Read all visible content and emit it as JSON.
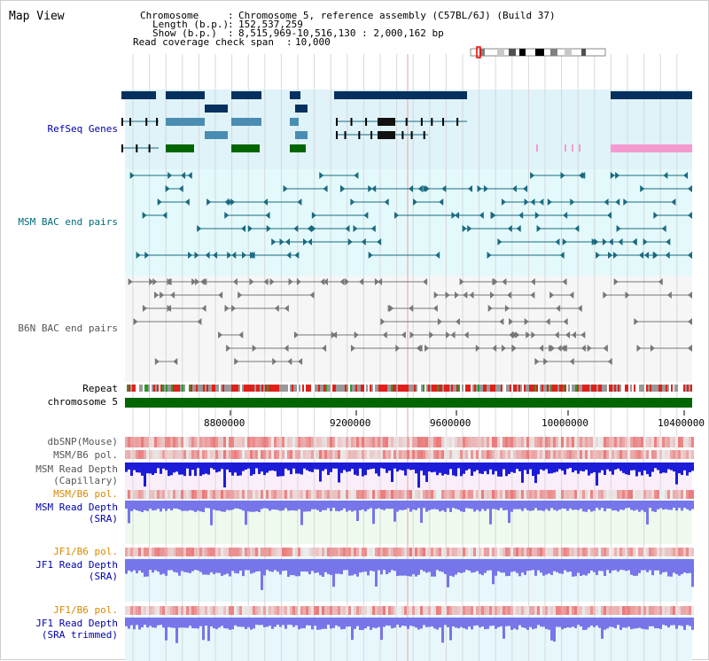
{
  "page": {
    "title": "Map View"
  },
  "header": {
    "rows": [
      {
        "label": "Chromosome",
        "sep": ":",
        "value": "Chromosome 5, reference assembly (C57BL/6J) (Build 37)"
      },
      {
        "label": "Length (b.p.)",
        "sep": ":",
        "value": "152,537,259"
      },
      {
        "label": "Show (b.p.)",
        "sep": ":",
        "value": "8,515,969-10,516,130 : 2,000,162 bp"
      },
      {
        "label": "Read coverage check span",
        "sep": ":",
        "value": "10,000"
      }
    ]
  },
  "tracks": {
    "refseq": "RefSeq Genes",
    "msm_bac": "MSM BAC end pairs",
    "b6n_bac": "B6N BAC end pairs",
    "repeat": "Repeat",
    "chromosome": "chromosome 5",
    "dbsnp": "dbSNP(Mouse)",
    "msm_b6_pol_1": "MSM/B6 pol.",
    "msm_depth_cap_1": "MSM Read Depth",
    "msm_depth_cap_2": "(Capillary)",
    "msm_b6_pol_2": "MSM/B6 pol.",
    "msm_depth_sra_1": "MSM Read Depth",
    "msm_depth_sra_2": "(SRA)",
    "jf1_b6_pol_1": "JF1/B6 pol.",
    "jf1_depth_sra_1": "JF1 Read Depth",
    "jf1_depth_sra_2": "(SRA)",
    "jf1_b6_pol_2": "JF1/B6 pol.",
    "jf1_depth_trim_1": "JF1 Read Depth",
    "jf1_depth_trim_2": "(SRA trimmed)"
  },
  "axis": {
    "ticks": [
      "8800000",
      "9200000",
      "9600000",
      "10000000",
      "10400000"
    ]
  },
  "colors": {
    "refseq_bg": "#dff3f9",
    "msm_bg": "#e3f9fb",
    "b6n_bg": "#f6f6f6",
    "depth_cap_bg": "#fbeefb",
    "depth_sra_bg": "#eefaee",
    "depth_jf1_bg": "#e7f7fb",
    "gene_navy": "#06305e",
    "gene_steel": "#4a8db3",
    "gene_green": "#006600",
    "msm_teal": "#1a6a80",
    "b6n_gray": "#5a5a5a",
    "chrom_green": "#006600",
    "repeat_red": "#e0201a",
    "depth_blue": "#1c1cd8",
    "depth_blue_light": "#7676ea",
    "label_blue": "#0000aa",
    "label_teal": "#006b7b",
    "label_orange": "#d88a00"
  }
}
